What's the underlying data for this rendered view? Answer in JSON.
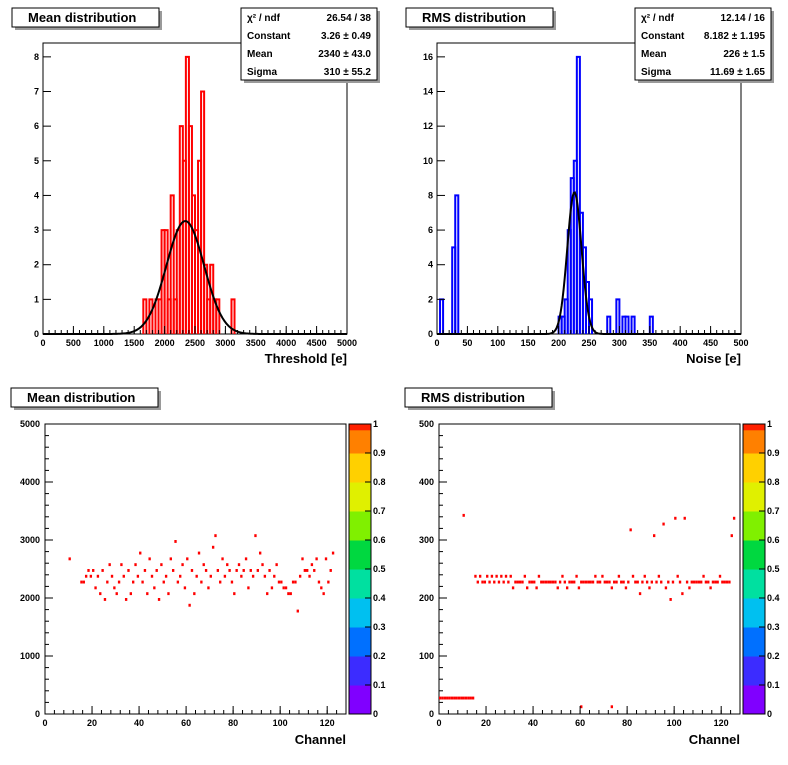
{
  "colors": {
    "hist_mean": "#ff0000",
    "hist_rms": "#0000ff",
    "fit": "#000000",
    "map_cell": "#ff0000",
    "map_cell_dark": "#cc0000",
    "frame": "#000000",
    "title_bg": "#ffffff"
  },
  "chart_data": [
    {
      "id": "mean-hist",
      "type": "bar",
      "title": "Mean distribution",
      "xlabel": "Threshold [e]",
      "ylabel": "",
      "xlim": [
        0,
        5000
      ],
      "ylim": [
        0,
        8.4
      ],
      "x_ticks": [
        0,
        500,
        1000,
        1500,
        2000,
        2500,
        3000,
        3500,
        4000,
        4500,
        5000
      ],
      "y_ticks": [
        0,
        1,
        2,
        3,
        4,
        5,
        6,
        7,
        8
      ],
      "bin_width": 50,
      "bins": [
        [
          1650,
          1
        ],
        [
          1750,
          1
        ],
        [
          1850,
          1
        ],
        [
          1900,
          1
        ],
        [
          1950,
          3
        ],
        [
          2000,
          3
        ],
        [
          2050,
          1
        ],
        [
          2100,
          4
        ],
        [
          2150,
          1
        ],
        [
          2200,
          3
        ],
        [
          2250,
          6
        ],
        [
          2300,
          5
        ],
        [
          2350,
          8
        ],
        [
          2400,
          6
        ],
        [
          2450,
          4
        ],
        [
          2500,
          3
        ],
        [
          2550,
          5
        ],
        [
          2600,
          7
        ],
        [
          2650,
          2
        ],
        [
          2700,
          1
        ],
        [
          2750,
          2
        ],
        [
          2800,
          1
        ],
        [
          2850,
          1
        ],
        [
          3100,
          1
        ]
      ],
      "fit": {
        "type": "gauss",
        "constant": 3.26,
        "mean": 2340,
        "sigma": 310
      },
      "stats": [
        {
          "label": "χ² / ndf",
          "value": "26.54 / 38"
        },
        {
          "label": "Constant",
          "value": "3.26 ± 0.49"
        },
        {
          "label": "Mean",
          "value": "2340 ± 43.0"
        },
        {
          "label": "Sigma",
          "value": "310 ± 55.2"
        }
      ]
    },
    {
      "id": "rms-hist",
      "type": "bar",
      "title": "RMS distribution",
      "xlabel": "Noise [e]",
      "ylabel": "",
      "xlim": [
        0,
        500
      ],
      "ylim": [
        0,
        16.8
      ],
      "x_ticks": [
        0,
        50,
        100,
        150,
        200,
        250,
        300,
        350,
        400,
        450,
        500
      ],
      "y_ticks": [
        0,
        2,
        4,
        6,
        8,
        10,
        12,
        14,
        16
      ],
      "bin_width": 5,
      "bins": [
        [
          5,
          2
        ],
        [
          25,
          5
        ],
        [
          30,
          8
        ],
        [
          200,
          1
        ],
        [
          205,
          1
        ],
        [
          210,
          2
        ],
        [
          215,
          6
        ],
        [
          220,
          9
        ],
        [
          225,
          10
        ],
        [
          230,
          16
        ],
        [
          235,
          7
        ],
        [
          240,
          5
        ],
        [
          245,
          3
        ],
        [
          250,
          2
        ],
        [
          280,
          1
        ],
        [
          295,
          2
        ],
        [
          305,
          1
        ],
        [
          310,
          1
        ],
        [
          320,
          1
        ],
        [
          350,
          1
        ]
      ],
      "fit": {
        "type": "gauss",
        "constant": 8.182,
        "mean": 226,
        "sigma": 11.69
      },
      "stats": [
        {
          "label": "χ² / ndf",
          "value": "12.14 / 16"
        },
        {
          "label": "Constant",
          "value": "8.182 ± 1.195"
        },
        {
          "label": "Mean",
          "value": "226 ± 1.5"
        },
        {
          "label": "Sigma",
          "value": "11.69 ± 1.65"
        }
      ]
    },
    {
      "id": "mean-map",
      "type": "heatmap",
      "title": "Mean distribution",
      "xlabel": "Channel",
      "ylabel": "",
      "xlim": [
        0,
        128
      ],
      "ylim": [
        0,
        5000
      ],
      "x_ticks": [
        0,
        20,
        40,
        60,
        80,
        100,
        120
      ],
      "y_ticks": [
        0,
        1000,
        2000,
        3000,
        4000,
        5000
      ],
      "z_ticks": [
        0,
        0.1,
        0.2,
        0.3,
        0.4,
        0.5,
        0.6,
        0.7,
        0.8,
        0.9,
        1
      ],
      "bin_h": 50,
      "cells": [
        [
          10,
          2650
        ],
        [
          15,
          2250
        ],
        [
          16,
          2250
        ],
        [
          17,
          2350
        ],
        [
          18,
          2450
        ],
        [
          19,
          2350
        ],
        [
          20,
          2450
        ],
        [
          21,
          2150
        ],
        [
          22,
          2350
        ],
        [
          23,
          2050
        ],
        [
          24,
          2450
        ],
        [
          25,
          1950
        ],
        [
          26,
          2250
        ],
        [
          27,
          2550
        ],
        [
          28,
          2350
        ],
        [
          29,
          2150
        ],
        [
          30,
          2050
        ],
        [
          31,
          2250
        ],
        [
          32,
          2550
        ],
        [
          33,
          2350
        ],
        [
          34,
          1950
        ],
        [
          35,
          2450
        ],
        [
          36,
          2050
        ],
        [
          37,
          2250
        ],
        [
          38,
          2550
        ],
        [
          39,
          2350
        ],
        [
          40,
          2750
        ],
        [
          41,
          2250
        ],
        [
          42,
          2450
        ],
        [
          43,
          2050
        ],
        [
          44,
          2650
        ],
        [
          45,
          2350
        ],
        [
          46,
          2150
        ],
        [
          47,
          2450
        ],
        [
          48,
          1950
        ],
        [
          49,
          2550
        ],
        [
          50,
          2250
        ],
        [
          51,
          2350
        ],
        [
          52,
          2050
        ],
        [
          53,
          2650
        ],
        [
          54,
          2450
        ],
        [
          55,
          2950
        ],
        [
          56,
          2250
        ],
        [
          57,
          2350
        ],
        [
          58,
          2550
        ],
        [
          59,
          2150
        ],
        [
          60,
          2650
        ],
        [
          61,
          1850
        ],
        [
          62,
          2450
        ],
        [
          63,
          2050
        ],
        [
          64,
          2350
        ],
        [
          65,
          2750
        ],
        [
          66,
          2250
        ],
        [
          67,
          2550
        ],
        [
          68,
          2450
        ],
        [
          69,
          2150
        ],
        [
          70,
          2350
        ],
        [
          71,
          2850
        ],
        [
          72,
          3050
        ],
        [
          73,
          2450
        ],
        [
          74,
          2250
        ],
        [
          75,
          2650
        ],
        [
          76,
          2350
        ],
        [
          77,
          2550
        ],
        [
          78,
          2450
        ],
        [
          79,
          2250
        ],
        [
          80,
          2050
        ],
        [
          81,
          2450
        ],
        [
          82,
          2550
        ],
        [
          83,
          2350
        ],
        [
          84,
          2450
        ],
        [
          85,
          2650
        ],
        [
          86,
          2150
        ],
        [
          87,
          2450
        ],
        [
          88,
          2350
        ],
        [
          89,
          3050
        ],
        [
          90,
          2450
        ],
        [
          91,
          2750
        ],
        [
          92,
          2550
        ],
        [
          93,
          2350
        ],
        [
          94,
          2050
        ],
        [
          95,
          2450
        ],
        [
          96,
          2150
        ],
        [
          97,
          2350
        ],
        [
          98,
          2550
        ],
        [
          99,
          2250
        ],
        [
          100,
          2250
        ],
        [
          101,
          2150
        ],
        [
          102,
          2150
        ],
        [
          103,
          2050
        ],
        [
          104,
          2050
        ],
        [
          105,
          2250
        ],
        [
          106,
          2250
        ],
        [
          107,
          1750
        ],
        [
          108,
          2350
        ],
        [
          109,
          2650
        ],
        [
          110,
          2450
        ],
        [
          111,
          2450
        ],
        [
          112,
          2350
        ],
        [
          113,
          2550
        ],
        [
          114,
          2450
        ],
        [
          115,
          2650
        ],
        [
          116,
          2250
        ],
        [
          117,
          2150
        ],
        [
          118,
          2050
        ],
        [
          119,
          2650
        ],
        [
          120,
          2250
        ],
        [
          121,
          2450
        ],
        [
          122,
          2750
        ]
      ]
    },
    {
      "id": "rms-map",
      "type": "heatmap",
      "title": "RMS distribution",
      "xlabel": "Channel",
      "ylabel": "",
      "xlim": [
        0,
        128
      ],
      "ylim": [
        0,
        500
      ],
      "x_ticks": [
        0,
        20,
        40,
        60,
        80,
        100,
        120
      ],
      "y_ticks": [
        0,
        100,
        200,
        300,
        400,
        500
      ],
      "z_ticks": [
        0,
        0.1,
        0.2,
        0.3,
        0.4,
        0.5,
        0.6,
        0.7,
        0.8,
        0.9,
        1
      ],
      "bin_h": 5,
      "cells": [
        [
          0,
          25
        ],
        [
          1,
          25
        ],
        [
          2,
          25
        ],
        [
          3,
          25
        ],
        [
          4,
          25
        ],
        [
          5,
          25
        ],
        [
          6,
          25
        ],
        [
          7,
          25
        ],
        [
          8,
          25
        ],
        [
          9,
          25
        ],
        [
          10,
          25
        ],
        [
          11,
          25
        ],
        [
          12,
          25
        ],
        [
          13,
          25
        ],
        [
          14,
          25
        ],
        [
          10,
          340
        ],
        [
          15,
          235
        ],
        [
          16,
          225
        ],
        [
          17,
          235
        ],
        [
          18,
          225
        ],
        [
          19,
          225
        ],
        [
          20,
          235
        ],
        [
          21,
          225
        ],
        [
          22,
          235
        ],
        [
          23,
          225
        ],
        [
          24,
          235
        ],
        [
          25,
          225
        ],
        [
          26,
          235
        ],
        [
          27,
          225
        ],
        [
          28,
          235
        ],
        [
          29,
          225
        ],
        [
          30,
          235
        ],
        [
          31,
          215
        ],
        [
          32,
          225
        ],
        [
          33,
          225
        ],
        [
          34,
          225
        ],
        [
          35,
          225
        ],
        [
          36,
          235
        ],
        [
          37,
          215
        ],
        [
          38,
          225
        ],
        [
          39,
          225
        ],
        [
          40,
          225
        ],
        [
          41,
          215
        ],
        [
          42,
          235
        ],
        [
          43,
          225
        ],
        [
          44,
          225
        ],
        [
          45,
          225
        ],
        [
          46,
          225
        ],
        [
          47,
          225
        ],
        [
          48,
          225
        ],
        [
          49,
          225
        ],
        [
          50,
          215
        ],
        [
          51,
          225
        ],
        [
          52,
          235
        ],
        [
          53,
          225
        ],
        [
          54,
          215
        ],
        [
          55,
          225
        ],
        [
          56,
          225
        ],
        [
          57,
          225
        ],
        [
          58,
          235
        ],
        [
          59,
          215
        ],
        [
          60,
          10
        ],
        [
          60,
          225
        ],
        [
          61,
          225
        ],
        [
          62,
          225
        ],
        [
          63,
          225
        ],
        [
          64,
          225
        ],
        [
          65,
          225
        ],
        [
          66,
          235
        ],
        [
          67,
          225
        ],
        [
          68,
          225
        ],
        [
          69,
          235
        ],
        [
          70,
          225
        ],
        [
          71,
          225
        ],
        [
          72,
          225
        ],
        [
          73,
          215
        ],
        [
          73,
          10
        ],
        [
          74,
          225
        ],
        [
          75,
          225
        ],
        [
          76,
          235
        ],
        [
          77,
          225
        ],
        [
          78,
          225
        ],
        [
          79,
          215
        ],
        [
          80,
          225
        ],
        [
          81,
          315
        ],
        [
          82,
          235
        ],
        [
          83,
          225
        ],
        [
          84,
          225
        ],
        [
          85,
          205
        ],
        [
          86,
          225
        ],
        [
          87,
          235
        ],
        [
          88,
          225
        ],
        [
          89,
          215
        ],
        [
          90,
          225
        ],
        [
          91,
          305
        ],
        [
          92,
          225
        ],
        [
          93,
          235
        ],
        [
          94,
          225
        ],
        [
          95,
          325
        ],
        [
          96,
          215
        ],
        [
          97,
          225
        ],
        [
          98,
          195
        ],
        [
          99,
          225
        ],
        [
          100,
          335
        ],
        [
          101,
          235
        ],
        [
          102,
          225
        ],
        [
          103,
          205
        ],
        [
          104,
          335
        ],
        [
          105,
          225
        ],
        [
          106,
          215
        ],
        [
          107,
          225
        ],
        [
          108,
          225
        ],
        [
          109,
          225
        ],
        [
          110,
          225
        ],
        [
          111,
          225
        ],
        [
          112,
          235
        ],
        [
          113,
          225
        ],
        [
          114,
          225
        ],
        [
          115,
          215
        ],
        [
          116,
          225
        ],
        [
          117,
          225
        ],
        [
          118,
          225
        ],
        [
          119,
          235
        ],
        [
          120,
          225
        ],
        [
          121,
          225
        ],
        [
          122,
          225
        ],
        [
          123,
          225
        ],
        [
          124,
          305
        ],
        [
          125,
          335
        ]
      ]
    }
  ]
}
